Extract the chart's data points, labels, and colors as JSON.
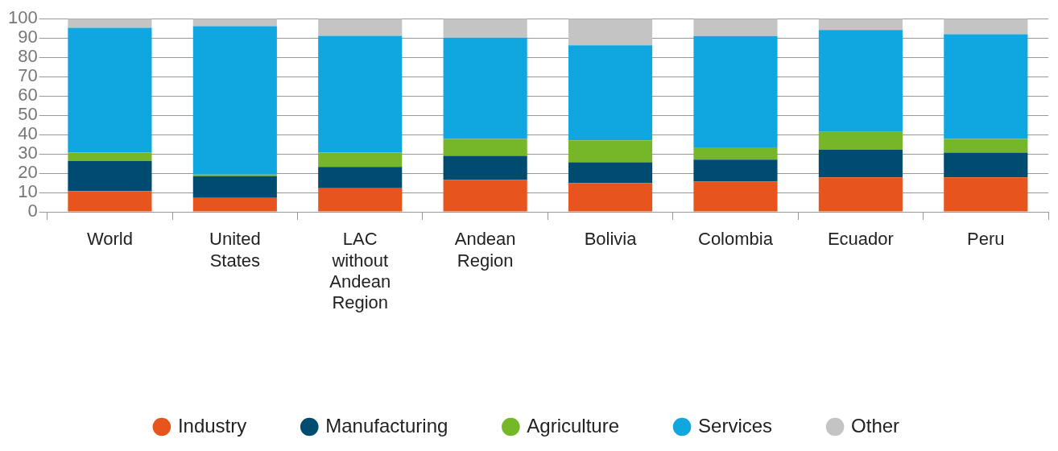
{
  "chart_data": {
    "type": "bar",
    "stacked": true,
    "categories": [
      "World",
      "United States",
      "LAC without Andean Region",
      "Andean Region",
      "Bolivia",
      "Colombia",
      "Ecuador",
      "Peru"
    ],
    "series": [
      {
        "name": "Industry",
        "color": "#e8541e",
        "values": [
          10.7,
          7.2,
          12.2,
          16.5,
          14.9,
          15.6,
          17.8,
          17.8
        ]
      },
      {
        "name": "Manufacturing",
        "color": "#004b70",
        "values": [
          15.6,
          11.3,
          11.1,
          12.5,
          10.7,
          11.4,
          14.3,
          12.8
        ]
      },
      {
        "name": "Agriculture",
        "color": "#76b729",
        "values": [
          4.3,
          0.8,
          7.3,
          8.7,
          11.4,
          6.4,
          9.3,
          7.1
        ]
      },
      {
        "name": "Services",
        "color": "#10a6df",
        "values": [
          64.7,
          76.8,
          60.5,
          52.5,
          49.2,
          57.6,
          52.7,
          54.3
        ]
      },
      {
        "name": "Other",
        "color": "#c4c4c4",
        "values": [
          4.7,
          3.9,
          8.9,
          9.8,
          13.8,
          9.0,
          5.9,
          8.0
        ]
      }
    ],
    "ylim": [
      0,
      100
    ],
    "yticks": [
      0,
      10,
      20,
      30,
      40,
      50,
      60,
      70,
      80,
      90,
      100
    ],
    "grid": "y",
    "legend": "bottom"
  }
}
